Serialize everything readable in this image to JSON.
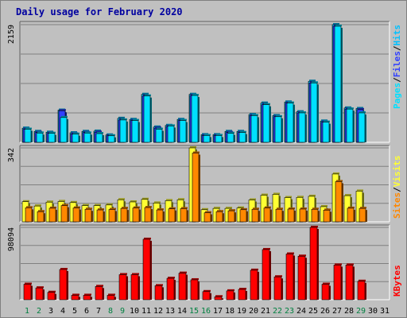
{
  "title": "Daily usage for February 2020",
  "colors": {
    "hits": "#00c0ff",
    "files": "#3040ff",
    "pages": "#00e0ff",
    "visits": "#ffff33",
    "sites": "#ff8800",
    "kbytes": "#ff0000",
    "weekend_day_label": "#008040",
    "day_label": "#000000"
  },
  "chart_data": [
    {
      "type": "bar",
      "panel": "top",
      "max_label": "2159",
      "ylim": [
        0,
        2159
      ],
      "categories": [
        "1",
        "2",
        "3",
        "4",
        "5",
        "6",
        "7",
        "8",
        "9",
        "10",
        "11",
        "12",
        "13",
        "14",
        "15",
        "16",
        "17",
        "18",
        "19",
        "20",
        "21",
        "22",
        "23",
        "24",
        "25",
        "26",
        "27",
        "28",
        "29",
        "30",
        "31"
      ],
      "weekend_days": [
        "1",
        "2",
        "8",
        "9",
        "15",
        "16",
        "22",
        "23",
        "29"
      ],
      "series": [
        {
          "name": "Hits",
          "values": [
            260,
            200,
            185,
            590,
            175,
            200,
            205,
            135,
            440,
            420,
            880,
            280,
            310,
            420,
            880,
            140,
            140,
            200,
            200,
            510,
            720,
            490,
            740,
            560,
            1120,
            390,
            2159,
            630,
            620,
            0,
            0
          ]
        },
        {
          "name": "Files",
          "values": [
            240,
            180,
            165,
            580,
            155,
            180,
            185,
            120,
            410,
            400,
            850,
            260,
            290,
            400,
            860,
            125,
            125,
            180,
            180,
            490,
            690,
            470,
            720,
            540,
            1090,
            370,
            2130,
            610,
            600,
            0,
            0
          ]
        },
        {
          "name": "Pages",
          "values": [
            240,
            170,
            165,
            455,
            150,
            170,
            160,
            120,
            410,
            400,
            850,
            240,
            300,
            400,
            860,
            125,
            125,
            165,
            180,
            490,
            690,
            470,
            720,
            540,
            1090,
            370,
            2130,
            610,
            540,
            0,
            0
          ]
        }
      ],
      "legend": [
        "Pages",
        "Files",
        "Hits"
      ]
    },
    {
      "type": "bar",
      "panel": "middle",
      "max_label": "342",
      "ylim": [
        0,
        342
      ],
      "categories": [
        "1",
        "2",
        "3",
        "4",
        "5",
        "6",
        "7",
        "8",
        "9",
        "10",
        "11",
        "12",
        "13",
        "14",
        "15",
        "16",
        "17",
        "18",
        "19",
        "20",
        "21",
        "22",
        "23",
        "24",
        "25",
        "26",
        "27",
        "28",
        "29",
        "30",
        "31"
      ],
      "series": [
        {
          "name": "Visits",
          "values": [
            93,
            73,
            91,
            94,
            89,
            75,
            75,
            78,
            102,
            92,
            104,
            87,
            98,
            102,
            342,
            56,
            62,
            62,
            64,
            101,
            123,
            127,
            112,
            113,
            118,
            70,
            221,
            121,
            142,
            0,
            0
          ]
        },
        {
          "name": "Sites",
          "values": [
            65,
            47,
            63,
            75,
            64,
            58,
            55,
            57,
            62,
            64,
            66,
            55,
            60,
            61,
            318,
            42,
            47,
            51,
            56,
            58,
            64,
            58,
            59,
            59,
            58,
            54,
            186,
            63,
            62,
            0,
            0
          ]
        }
      ],
      "legend": [
        "Sites",
        "Visits"
      ]
    },
    {
      "type": "bar",
      "panel": "bottom",
      "max_label": "98094",
      "ylim": [
        0,
        98094
      ],
      "categories": [
        "1",
        "2",
        "3",
        "4",
        "5",
        "6",
        "7",
        "8",
        "9",
        "10",
        "11",
        "12",
        "13",
        "14",
        "15",
        "16",
        "17",
        "18",
        "19",
        "20",
        "21",
        "22",
        "23",
        "24",
        "25",
        "26",
        "27",
        "28",
        "29",
        "30",
        "31"
      ],
      "series": [
        {
          "name": "KBytes",
          "values": [
            21000,
            16000,
            10000,
            41000,
            6000,
            6000,
            18000,
            6000,
            34000,
            34000,
            82000,
            19000,
            29000,
            36000,
            27000,
            11000,
            4000,
            12000,
            14000,
            40000,
            68000,
            31000,
            62000,
            59000,
            98094,
            21000,
            47000,
            47000,
            25000,
            0,
            0
          ]
        }
      ],
      "legend": [
        "KBytes"
      ]
    }
  ]
}
